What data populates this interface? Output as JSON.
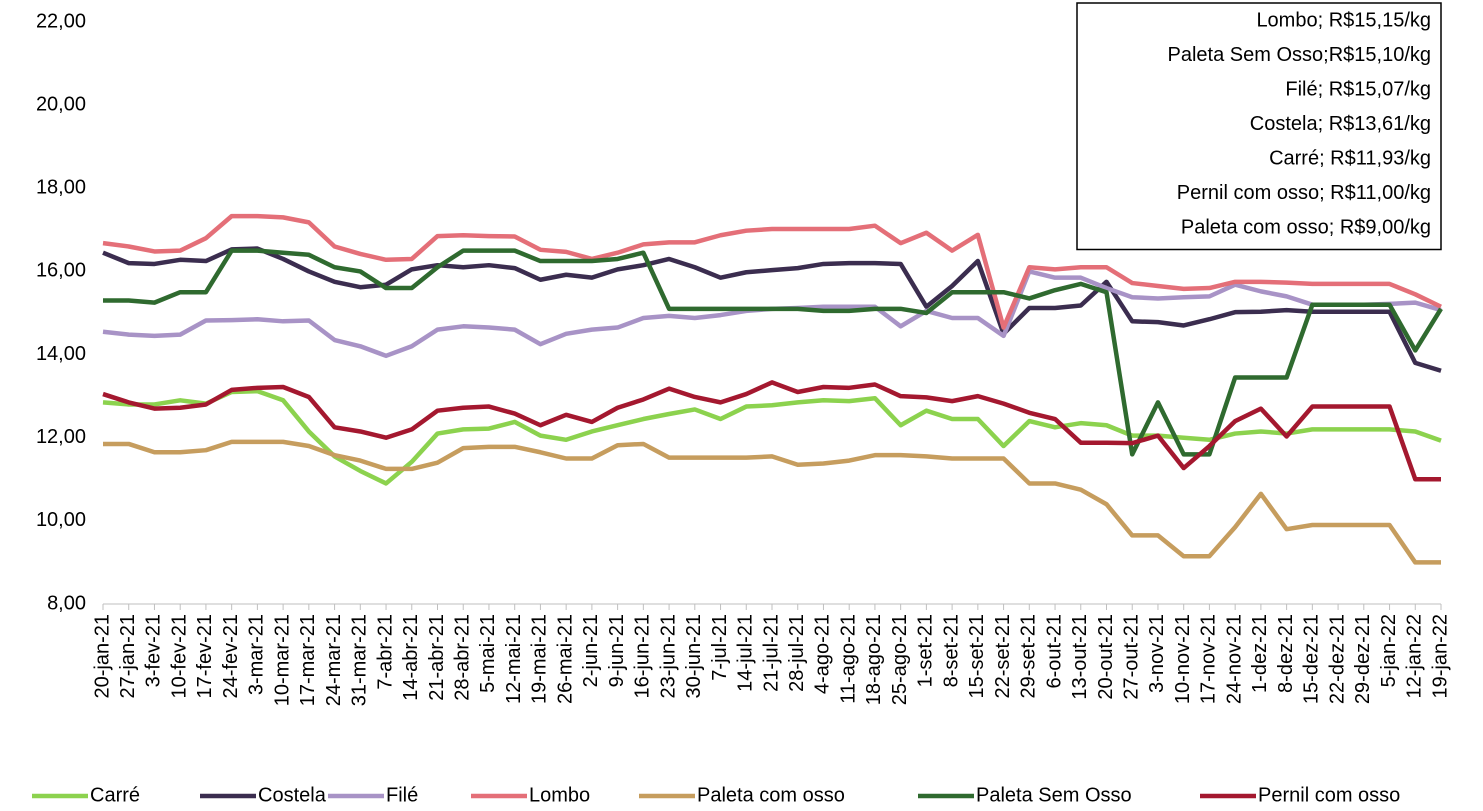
{
  "chart_data": {
    "type": "line",
    "categories": [
      "20-jan-21",
      "27-jan-21",
      "3-fev-21",
      "10-fev-21",
      "17-fev-21",
      "24-fev-21",
      "3-mar-21",
      "10-mar-21",
      "17-mar-21",
      "24-mar-21",
      "31-mar-21",
      "7-abr-21",
      "14-abr-21",
      "21-abr-21",
      "28-abr-21",
      "5-mai-21",
      "12-mai-21",
      "19-mai-21",
      "26-mai-21",
      "2-jun-21",
      "9-jun-21",
      "16-jun-21",
      "23-jun-21",
      "30-jun-21",
      "7-jul-21",
      "14-jul-21",
      "21-jul-21",
      "28-jul-21",
      "4-ago-21",
      "11-ago-21",
      "18-ago-21",
      "25-ago-21",
      "1-set-21",
      "8-set-21",
      "15-set-21",
      "22-set-21",
      "29-set-21",
      "6-out-21",
      "13-out-21",
      "20-out-21",
      "27-out-21",
      "3-nov-21",
      "10-nov-21",
      "17-nov-21",
      "24-nov-21",
      "1-dez-21",
      "8-dez-21",
      "15-dez-21",
      "22-dez-21",
      "29-dez-21",
      "5-jan-22",
      "12-jan-22",
      "19-jan-22"
    ],
    "series": [
      {
        "name": "Carré",
        "color": "#8cd24e",
        "values": [
          12.85,
          12.8,
          12.8,
          12.9,
          12.82,
          13.1,
          13.12,
          12.9,
          12.15,
          11.55,
          11.2,
          10.9,
          11.42,
          12.1,
          12.2,
          12.22,
          12.38,
          12.05,
          11.95,
          12.15,
          12.3,
          12.45,
          12.57,
          12.68,
          12.45,
          12.75,
          12.78,
          12.85,
          12.9,
          12.88,
          12.95,
          12.3,
          12.65,
          12.45,
          12.45,
          11.8,
          12.4,
          12.25,
          12.35,
          12.3,
          12.05,
          12.05,
          12.0,
          11.95,
          12.1,
          12.15,
          12.1,
          12.2,
          12.2,
          12.2,
          12.2,
          12.15,
          11.93
        ]
      },
      {
        "name": "Costela",
        "color": "#3b2d4f",
        "values": [
          16.45,
          16.2,
          16.18,
          16.28,
          16.25,
          16.53,
          16.55,
          16.3,
          16.0,
          15.75,
          15.62,
          15.68,
          16.05,
          16.15,
          16.1,
          16.15,
          16.08,
          15.8,
          15.92,
          15.85,
          16.05,
          16.15,
          16.3,
          16.1,
          15.85,
          15.98,
          16.03,
          16.08,
          16.18,
          16.2,
          16.2,
          16.18,
          15.15,
          15.65,
          16.25,
          14.5,
          15.12,
          15.12,
          15.18,
          15.75,
          14.8,
          14.78,
          14.7,
          14.85,
          15.02,
          15.03,
          15.07,
          15.03,
          15.03,
          15.03,
          15.03,
          13.8,
          13.61
        ]
      },
      {
        "name": "Filé",
        "color": "#a893c6",
        "values": [
          14.55,
          14.48,
          14.45,
          14.48,
          14.82,
          14.83,
          14.85,
          14.8,
          14.82,
          14.35,
          14.2,
          13.97,
          14.2,
          14.6,
          14.68,
          14.65,
          14.6,
          14.25,
          14.5,
          14.6,
          14.65,
          14.88,
          14.93,
          14.88,
          14.95,
          15.05,
          15.1,
          15.12,
          15.15,
          15.15,
          15.15,
          14.68,
          15.05,
          14.88,
          14.88,
          14.45,
          16.0,
          15.85,
          15.85,
          15.6,
          15.38,
          15.35,
          15.38,
          15.4,
          15.68,
          15.52,
          15.4,
          15.2,
          15.2,
          15.2,
          15.22,
          15.25,
          15.07
        ]
      },
      {
        "name": "Lombo",
        "color": "#e46f78",
        "values": [
          16.68,
          16.6,
          16.48,
          16.5,
          16.8,
          17.33,
          17.33,
          17.3,
          17.18,
          16.6,
          16.42,
          16.28,
          16.3,
          16.85,
          16.87,
          16.85,
          16.84,
          16.52,
          16.47,
          16.3,
          16.45,
          16.65,
          16.7,
          16.7,
          16.87,
          16.98,
          17.02,
          17.02,
          17.02,
          17.02,
          17.1,
          16.68,
          16.93,
          16.5,
          16.88,
          14.65,
          16.1,
          16.05,
          16.1,
          16.1,
          15.72,
          15.65,
          15.58,
          15.6,
          15.75,
          15.75,
          15.73,
          15.7,
          15.7,
          15.7,
          15.7,
          15.45,
          15.15
        ]
      },
      {
        "name": "Paleta com osso",
        "color": "#c69d5e",
        "values": [
          11.85,
          11.85,
          11.65,
          11.65,
          11.7,
          11.9,
          11.9,
          11.9,
          11.8,
          11.58,
          11.45,
          11.25,
          11.25,
          11.4,
          11.75,
          11.78,
          11.78,
          11.65,
          11.5,
          11.5,
          11.82,
          11.85,
          11.52,
          11.52,
          11.52,
          11.52,
          11.55,
          11.35,
          11.38,
          11.45,
          11.58,
          11.58,
          11.55,
          11.5,
          11.5,
          11.5,
          10.9,
          10.9,
          10.75,
          10.4,
          9.65,
          9.65,
          9.15,
          9.15,
          9.85,
          10.65,
          9.8,
          9.9,
          9.9,
          9.9,
          9.9,
          9.0,
          9.0
        ]
      },
      {
        "name": "Paleta Sem Osso",
        "color": "#2f6a2f",
        "values": [
          15.3,
          15.3,
          15.25,
          15.5,
          15.5,
          16.5,
          16.5,
          16.45,
          16.4,
          16.1,
          16.0,
          15.6,
          15.6,
          16.1,
          16.5,
          16.5,
          16.5,
          16.25,
          16.25,
          16.25,
          16.3,
          16.45,
          15.1,
          15.1,
          15.1,
          15.1,
          15.1,
          15.1,
          15.05,
          15.05,
          15.1,
          15.1,
          15.0,
          15.5,
          15.5,
          15.5,
          15.35,
          15.55,
          15.7,
          15.5,
          11.6,
          12.85,
          11.6,
          11.6,
          13.45,
          13.45,
          13.45,
          15.2,
          15.2,
          15.2,
          15.2,
          14.1,
          15.1
        ]
      },
      {
        "name": "Pernil com osso",
        "color": "#a4182f",
        "values": [
          13.05,
          12.85,
          12.7,
          12.72,
          12.8,
          13.15,
          13.2,
          13.22,
          12.98,
          12.25,
          12.15,
          12.0,
          12.2,
          12.65,
          12.72,
          12.75,
          12.58,
          12.3,
          12.55,
          12.38,
          12.72,
          12.92,
          13.18,
          12.98,
          12.85,
          13.05,
          13.33,
          13.1,
          13.22,
          13.2,
          13.28,
          13.0,
          12.97,
          12.88,
          13.0,
          12.82,
          12.6,
          12.45,
          11.88,
          11.88,
          11.87,
          12.05,
          11.27,
          11.8,
          12.4,
          12.7,
          12.03,
          12.75,
          12.75,
          12.75,
          12.75,
          11.0,
          11.0
        ]
      }
    ],
    "ylim": [
      8,
      22
    ],
    "yticks": [
      {
        "value": 8,
        "label": "8,00"
      },
      {
        "value": 10,
        "label": "10,00"
      },
      {
        "value": 12,
        "label": "12,00"
      },
      {
        "value": 14,
        "label": "14,00"
      },
      {
        "value": 16,
        "label": "16,00"
      },
      {
        "value": 18,
        "label": "18,00"
      },
      {
        "value": 20,
        "label": "20,00"
      },
      {
        "value": 22,
        "label": "22,00"
      }
    ],
    "annotations": [
      "Lombo; R$15,15/kg",
      "Paleta Sem Osso;R$15,10/kg",
      "Filé; R$15,07/kg",
      "Costela; R$13,61/kg",
      "Carré; R$11,93/kg",
      "Pernil com osso; R$11,00/kg",
      "Paleta com osso; R$9,00/kg"
    ],
    "grid": false,
    "legend": "bottom"
  }
}
